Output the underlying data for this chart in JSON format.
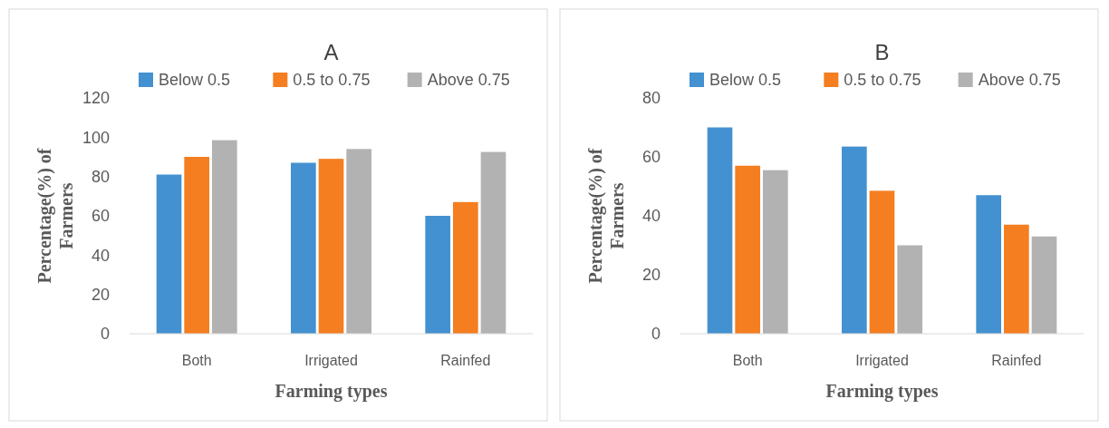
{
  "chart_data": [
    {
      "type": "bar",
      "title": "A",
      "xlabel": "Farming types",
      "ylabel": "Percentage(%) of Farmers",
      "categories": [
        "Both",
        "Irrigated",
        "Rainfed"
      ],
      "ylim": [
        0,
        120
      ],
      "yticks": [
        0,
        20,
        40,
        60,
        80,
        100,
        120
      ],
      "legend": "top",
      "series": [
        {
          "name": "Below 0.5",
          "color": "#4391d0",
          "values": [
            81,
            87,
            60
          ]
        },
        {
          "name": "0.5 to 0.75",
          "color": "#f47e20",
          "values": [
            90,
            89,
            67
          ]
        },
        {
          "name": "Above 0.75",
          "color": "#b2b2b2",
          "values": [
            98.5,
            94,
            92.5
          ]
        }
      ]
    },
    {
      "type": "bar",
      "title": "B",
      "xlabel": "Farming types",
      "ylabel": "Percentage(%) of Farmers",
      "categories": [
        "Both",
        "Irrigated",
        "Rainfed"
      ],
      "ylim": [
        0,
        80
      ],
      "yticks": [
        0,
        20,
        40,
        60,
        80
      ],
      "legend": "top",
      "series": [
        {
          "name": "Below 0.5",
          "color": "#4391d0",
          "values": [
            70,
            63.5,
            47
          ]
        },
        {
          "name": "0.5 to 0.75",
          "color": "#f47e20",
          "values": [
            57,
            48.5,
            37
          ]
        },
        {
          "name": "Above 0.75",
          "color": "#b2b2b2",
          "values": [
            55.5,
            30,
            33
          ]
        }
      ]
    }
  ]
}
